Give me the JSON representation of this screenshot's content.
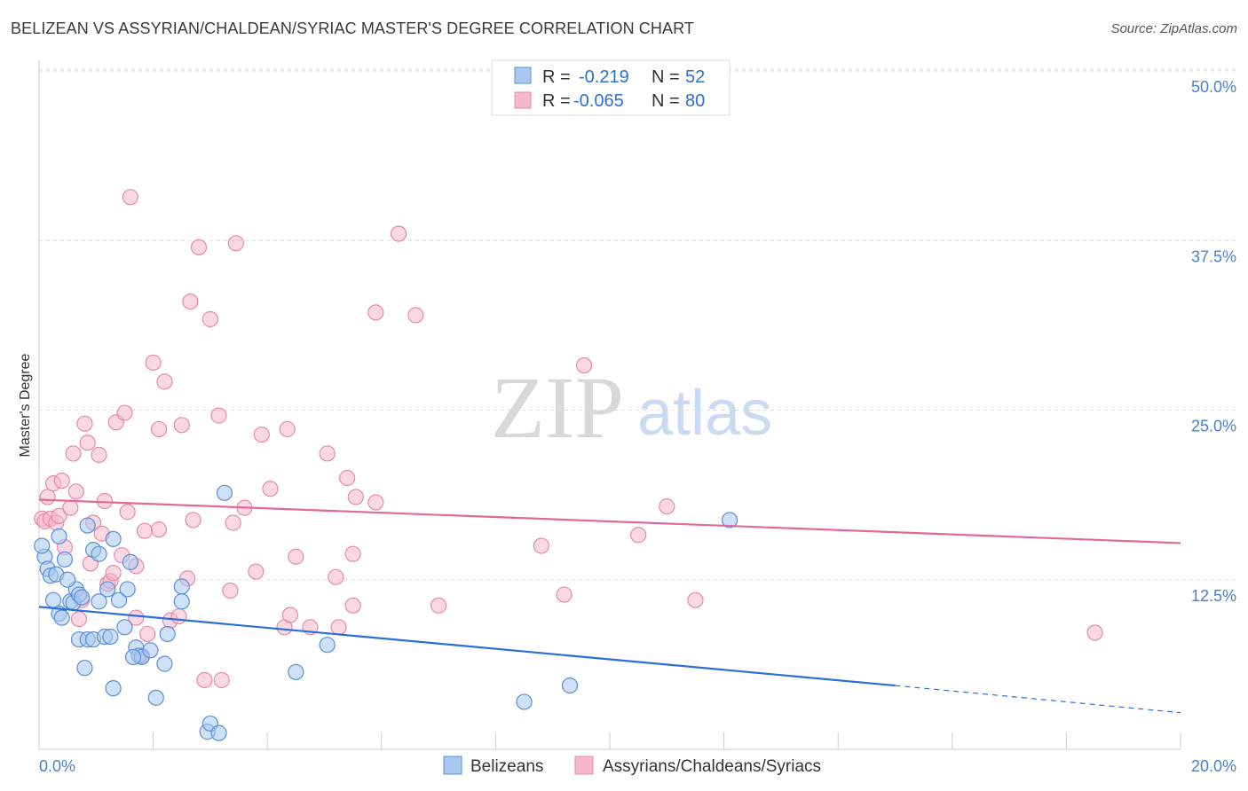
{
  "header": {
    "title": "BELIZEAN VS ASSYRIAN/CHALDEAN/SYRIAC MASTER'S DEGREE CORRELATION CHART",
    "source": "Source: ZipAtlas.com"
  },
  "watermark": {
    "zip": "ZIP",
    "atlas": "atlas"
  },
  "legend": {
    "rows": [
      {
        "r_label": "R =",
        "r_value": "-0.219",
        "n_label": "N =",
        "n_value": "52",
        "color": "#a8c8f0"
      },
      {
        "r_label": "R =",
        "r_value": "-0.065",
        "n_label": "N =",
        "n_value": "80",
        "color": "#f5b8cc"
      }
    ]
  },
  "bottom_legend": [
    {
      "label": "Belizeans",
      "color": "#a8c8f0"
    },
    {
      "label": "Assyrians/Chaldeans/Syriacs",
      "color": "#f5b8cc"
    }
  ],
  "chart_data": {
    "type": "scatter",
    "ylabel": "Master's Degree",
    "xlim": [
      0,
      20
    ],
    "ylim": [
      0,
      50
    ],
    "y_ticks": [
      {
        "value": 12.5,
        "label": "12.5%"
      },
      {
        "value": 25,
        "label": "25.0%"
      },
      {
        "value": 37.5,
        "label": "37.5%"
      },
      {
        "value": 50,
        "label": "50.0%"
      }
    ],
    "x_tick_labels": [
      {
        "value": 0,
        "label": "0.0%"
      },
      {
        "value": 20,
        "label": "20.0%"
      }
    ],
    "grid": "horizontal dashed",
    "colors": {
      "belizean_fill": "#a8c8f0",
      "belizean_stroke": "#5b8fd6",
      "belizean_line": "#2a6fd6",
      "assyrian_fill": "#f5b8cc",
      "assyrian_stroke": "#e58aa8",
      "assyrian_line": "#e0689a"
    },
    "series": [
      {
        "name": "Belizeans",
        "trend": {
          "x0": 0,
          "y0": 10.5,
          "x1": 15,
          "y1": 4.7,
          "dash_to_x": 20,
          "dash_to_y": 2.7
        },
        "points": [
          [
            0.1,
            14.2
          ],
          [
            0.15,
            13.3
          ],
          [
            0.2,
            12.8
          ],
          [
            0.3,
            12.9
          ],
          [
            0.25,
            11.0
          ],
          [
            0.35,
            15.7
          ],
          [
            0.45,
            14.0
          ],
          [
            0.35,
            10.0
          ],
          [
            0.4,
            9.7
          ],
          [
            0.55,
            10.9
          ],
          [
            0.6,
            10.8
          ],
          [
            0.65,
            11.8
          ],
          [
            0.7,
            11.4
          ],
          [
            0.75,
            11.2
          ],
          [
            0.85,
            16.5
          ],
          [
            0.95,
            14.7
          ],
          [
            1.05,
            14.4
          ],
          [
            1.05,
            10.9
          ],
          [
            0.7,
            8.1
          ],
          [
            0.85,
            8.1
          ],
          [
            0.95,
            8.1
          ],
          [
            1.15,
            8.3
          ],
          [
            1.25,
            8.3
          ],
          [
            1.3,
            15.5
          ],
          [
            1.2,
            11.8
          ],
          [
            1.4,
            11.0
          ],
          [
            1.55,
            11.8
          ],
          [
            1.6,
            13.8
          ],
          [
            1.5,
            9.0
          ],
          [
            1.7,
            7.5
          ],
          [
            1.75,
            6.9
          ],
          [
            1.8,
            6.8
          ],
          [
            1.95,
            7.3
          ],
          [
            2.2,
            6.3
          ],
          [
            2.25,
            8.5
          ],
          [
            2.5,
            10.9
          ],
          [
            2.5,
            12.0
          ],
          [
            0.8,
            6.0
          ],
          [
            1.3,
            4.5
          ],
          [
            2.05,
            3.8
          ],
          [
            2.95,
            1.3
          ],
          [
            3.0,
            1.9
          ],
          [
            3.15,
            1.2
          ],
          [
            3.25,
            18.9
          ],
          [
            4.5,
            5.7
          ],
          [
            5.05,
            7.7
          ],
          [
            8.5,
            3.5
          ],
          [
            9.3,
            4.7
          ],
          [
            12.1,
            16.9
          ],
          [
            0.05,
            15.0
          ],
          [
            1.65,
            6.8
          ],
          [
            0.5,
            12.5
          ]
        ]
      },
      {
        "name": "Assyrians/Chaldeans/Syriacs",
        "trend": {
          "x0": 0,
          "y0": 18.4,
          "x1": 20,
          "y1": 15.2
        },
        "points": [
          [
            0.05,
            17.0
          ],
          [
            0.1,
            16.8
          ],
          [
            0.15,
            18.6
          ],
          [
            0.2,
            17.0
          ],
          [
            0.25,
            19.6
          ],
          [
            0.3,
            16.7
          ],
          [
            0.35,
            17.2
          ],
          [
            0.4,
            19.8
          ],
          [
            0.45,
            14.9
          ],
          [
            0.55,
            17.8
          ],
          [
            0.6,
            21.8
          ],
          [
            0.65,
            19.0
          ],
          [
            0.7,
            9.6
          ],
          [
            0.75,
            11.0
          ],
          [
            0.8,
            24.0
          ],
          [
            0.85,
            22.6
          ],
          [
            0.9,
            13.7
          ],
          [
            0.95,
            16.7
          ],
          [
            1.05,
            21.7
          ],
          [
            1.1,
            15.9
          ],
          [
            1.15,
            18.3
          ],
          [
            1.2,
            12.2
          ],
          [
            1.25,
            12.4
          ],
          [
            1.3,
            13.0
          ],
          [
            1.35,
            24.1
          ],
          [
            1.45,
            14.3
          ],
          [
            1.5,
            24.8
          ],
          [
            1.55,
            17.5
          ],
          [
            1.6,
            40.7
          ],
          [
            1.7,
            13.5
          ],
          [
            1.7,
            9.7
          ],
          [
            1.8,
            6.9
          ],
          [
            1.85,
            16.1
          ],
          [
            1.9,
            8.5
          ],
          [
            2.0,
            28.5
          ],
          [
            2.1,
            16.2
          ],
          [
            2.1,
            23.6
          ],
          [
            2.2,
            27.1
          ],
          [
            2.3,
            9.5
          ],
          [
            2.45,
            9.8
          ],
          [
            2.5,
            23.9
          ],
          [
            2.6,
            12.6
          ],
          [
            2.65,
            33.0
          ],
          [
            2.7,
            16.9
          ],
          [
            2.8,
            37.0
          ],
          [
            2.9,
            5.1
          ],
          [
            3.0,
            31.7
          ],
          [
            3.15,
            24.6
          ],
          [
            3.2,
            5.1
          ],
          [
            3.35,
            11.7
          ],
          [
            3.4,
            16.7
          ],
          [
            3.45,
            37.3
          ],
          [
            3.6,
            17.8
          ],
          [
            3.8,
            13.1
          ],
          [
            3.9,
            23.2
          ],
          [
            4.05,
            19.2
          ],
          [
            4.3,
            9.0
          ],
          [
            4.35,
            23.6
          ],
          [
            4.4,
            9.9
          ],
          [
            4.5,
            14.2
          ],
          [
            4.75,
            9.0
          ],
          [
            5.05,
            21.8
          ],
          [
            5.2,
            12.7
          ],
          [
            5.25,
            9.0
          ],
          [
            5.4,
            20.0
          ],
          [
            5.5,
            14.4
          ],
          [
            5.5,
            10.6
          ],
          [
            5.55,
            18.6
          ],
          [
            5.9,
            18.2
          ],
          [
            5.9,
            32.2
          ],
          [
            6.3,
            38.0
          ],
          [
            6.6,
            32.0
          ],
          [
            7.0,
            10.6
          ],
          [
            8.8,
            15.0
          ],
          [
            9.2,
            11.4
          ],
          [
            9.55,
            28.3
          ],
          [
            10.5,
            15.8
          ],
          [
            11.0,
            17.9
          ],
          [
            11.5,
            11.0
          ],
          [
            18.5,
            8.6
          ]
        ]
      }
    ]
  }
}
